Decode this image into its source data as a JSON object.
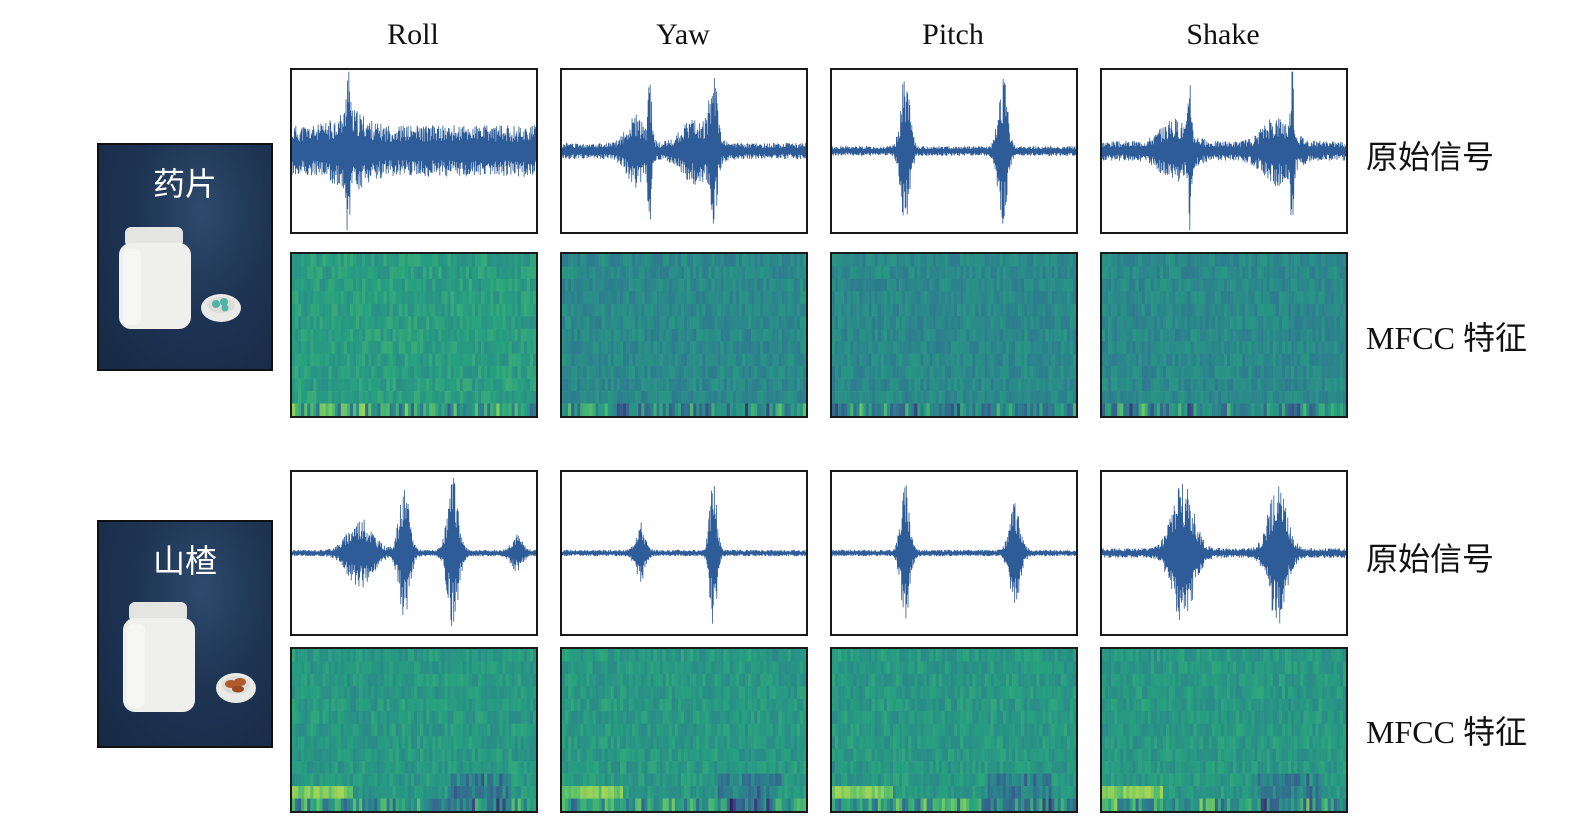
{
  "columns": [
    "Roll",
    "Yaw",
    "Pitch",
    "Shake"
  ],
  "row_labels": {
    "signal": "原始信号",
    "mfcc": "MFCC 特征"
  },
  "groups": [
    {
      "name": "药片",
      "contents_color": "#4fb3a8"
    },
    {
      "name": "山楂",
      "contents_color": "#b05a2c"
    }
  ],
  "colors": {
    "waveform": "#2e5c99",
    "panel_border": "#1a1a1a",
    "photo_background": "#1e3453",
    "mfcc_colormap": [
      "#3b1f6b",
      "#3a5a8c",
      "#2c7f8e",
      "#27a07f",
      "#5ec16a",
      "#c9e04a"
    ]
  }
}
